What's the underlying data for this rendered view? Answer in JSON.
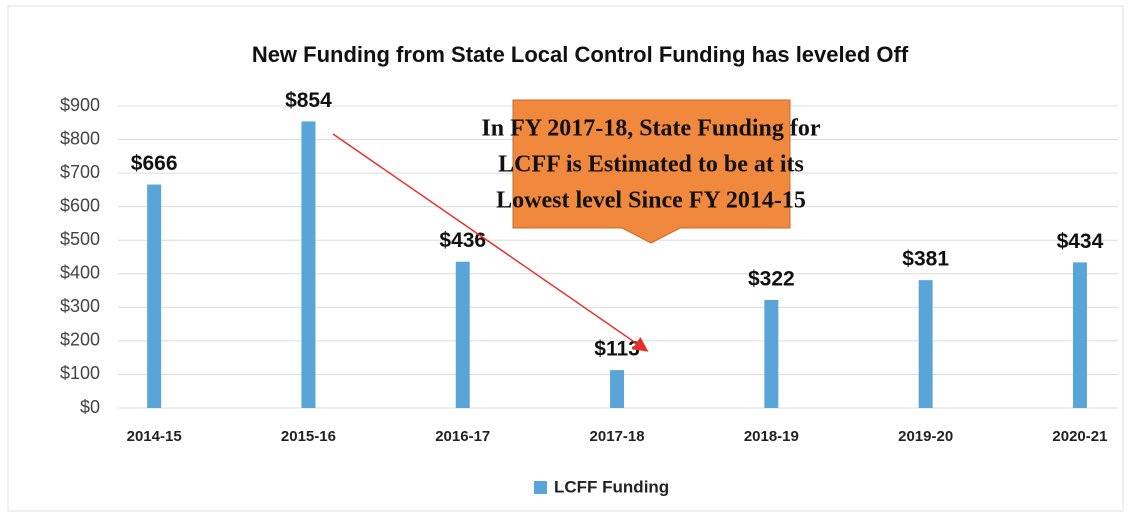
{
  "chart_data": {
    "type": "bar",
    "title": "New Funding from State Local Control Funding has leveled Off",
    "categories": [
      "2014-15",
      "2015-16",
      "2016-17",
      "2017-18",
      "2018-19",
      "2019-20",
      "2020-21"
    ],
    "series": [
      {
        "name": "LCFF Funding",
        "color": "#5aa5d8",
        "values": [
          666,
          854,
          436,
          113,
          322,
          381,
          434
        ],
        "value_labels": [
          "$666",
          "$854",
          "$436",
          "$113",
          "$322",
          "$381",
          "$434"
        ]
      }
    ],
    "ylim": [
      0,
      900
    ],
    "yticks": [
      {
        "value": 0,
        "label": "$0"
      },
      {
        "value": 100,
        "label": "$100"
      },
      {
        "value": 200,
        "label": "$200"
      },
      {
        "value": 300,
        "label": "$300"
      },
      {
        "value": 400,
        "label": "$400"
      },
      {
        "value": 500,
        "label": "$500"
      },
      {
        "value": 600,
        "label": "$600"
      },
      {
        "value": 700,
        "label": "$700"
      },
      {
        "value": 800,
        "label": "$800"
      },
      {
        "value": 900,
        "label": "$900"
      }
    ],
    "grid": true,
    "legend": "bottom",
    "annotation": [
      "In FY 2017-18, State Funding for",
      "LCFF is Estimated to be at its",
      "Lowest level Since FY 2014-15"
    ]
  }
}
